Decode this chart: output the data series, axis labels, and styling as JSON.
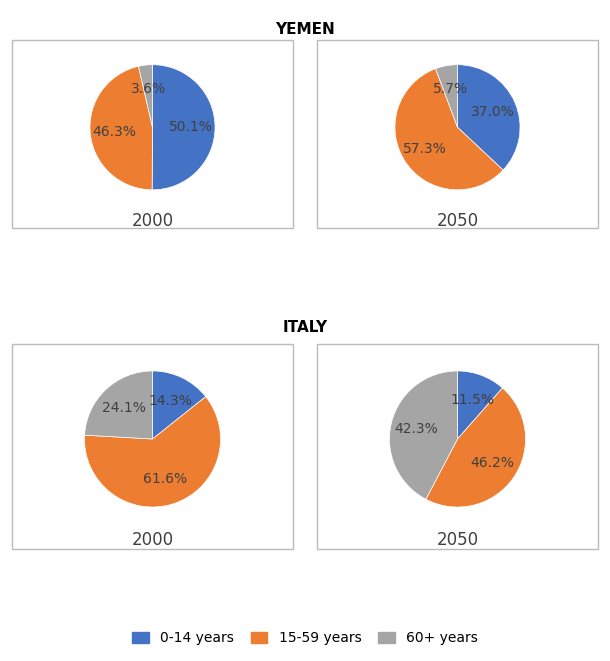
{
  "title_yemen": "YEMEN",
  "title_italy": "ITALY",
  "colors": {
    "0-14 years": "#4472C4",
    "15-59 years": "#ED7D31",
    "60+ years": "#A5A5A5"
  },
  "yemen_2000": {
    "values": [
      50.1,
      46.3,
      3.6
    ],
    "labels": [
      "50.1%",
      "46.3%",
      "3.6%"
    ],
    "year": "2000",
    "startangle": 90
  },
  "yemen_2050": {
    "values": [
      37.0,
      57.3,
      5.7
    ],
    "labels": [
      "37.0%",
      "57.3%",
      "5.7%"
    ],
    "year": "2050",
    "startangle": 90
  },
  "italy_2000": {
    "values": [
      14.3,
      61.6,
      24.1
    ],
    "labels": [
      "14.3%",
      "61.6%",
      "24.1%"
    ],
    "year": "2000",
    "startangle": 90
  },
  "italy_2050": {
    "values": [
      11.5,
      46.2,
      42.3
    ],
    "labels": [
      "11.5%",
      "46.2%",
      "42.3%"
    ],
    "year": "2050",
    "startangle": 90
  },
  "legend_labels": [
    "0-14 years",
    "15-59 years",
    "60+ years"
  ],
  "label_fontsize": 10,
  "year_fontsize": 12,
  "title_fontsize": 11,
  "legend_fontsize": 10,
  "text_color": "#404040"
}
